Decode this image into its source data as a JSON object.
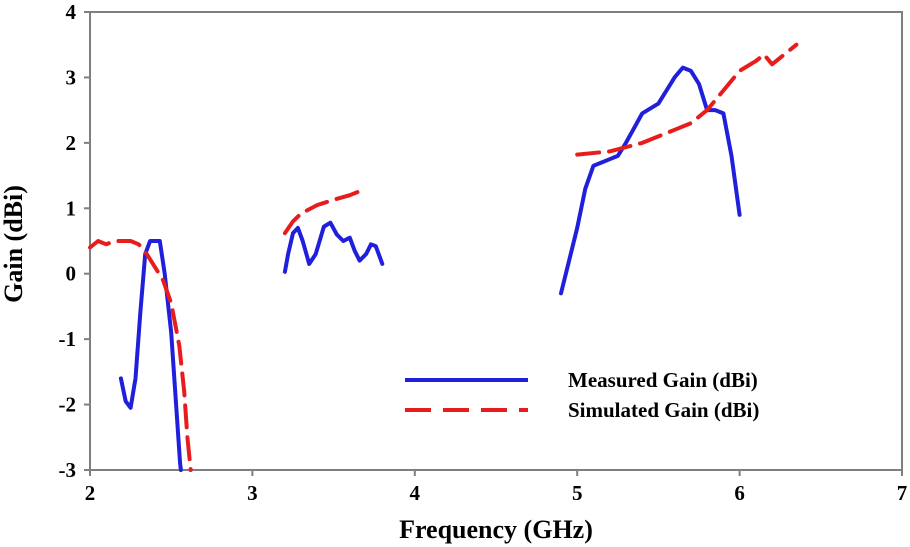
{
  "chart_data": {
    "type": "line",
    "title": "",
    "xlabel": "Frequency (GHz)",
    "ylabel": "Gain (dBi)",
    "xlim": [
      2,
      7
    ],
    "ylim": [
      -3,
      4
    ],
    "x_ticks": [
      "2",
      "3",
      "4",
      "5",
      "6",
      "7"
    ],
    "y_ticks": [
      "4",
      "3",
      "2",
      "1",
      "0",
      "-1",
      "-2",
      "-3"
    ],
    "legend_position": "bottom-right",
    "series": [
      {
        "name": "Measured Gain (dBi)",
        "color": "#1f1fdc",
        "style": "solid",
        "segments": [
          [
            [
              2.19,
              -1.6
            ],
            [
              2.22,
              -1.95
            ],
            [
              2.25,
              -2.05
            ],
            [
              2.28,
              -1.6
            ],
            [
              2.31,
              -0.6
            ],
            [
              2.34,
              0.3
            ],
            [
              2.37,
              0.5
            ],
            [
              2.4,
              0.5
            ],
            [
              2.43,
              0.5
            ],
            [
              2.46,
              0.0
            ],
            [
              2.5,
              -0.9
            ],
            [
              2.53,
              -2.0
            ],
            [
              2.555,
              -2.9
            ],
            [
              2.56,
              -3.0
            ]
          ],
          [
            [
              3.2,
              0.03
            ],
            [
              3.22,
              0.3
            ],
            [
              3.25,
              0.62
            ],
            [
              3.28,
              0.7
            ],
            [
              3.31,
              0.5
            ],
            [
              3.35,
              0.15
            ],
            [
              3.39,
              0.3
            ],
            [
              3.44,
              0.72
            ],
            [
              3.48,
              0.78
            ],
            [
              3.52,
              0.6
            ],
            [
              3.56,
              0.5
            ],
            [
              3.6,
              0.55
            ],
            [
              3.63,
              0.35
            ],
            [
              3.66,
              0.2
            ],
            [
              3.7,
              0.3
            ],
            [
              3.73,
              0.45
            ],
            [
              3.76,
              0.42
            ],
            [
              3.8,
              0.15
            ]
          ],
          [
            [
              4.9,
              -0.3
            ],
            [
              4.95,
              0.2
            ],
            [
              5.0,
              0.7
            ],
            [
              5.05,
              1.3
            ],
            [
              5.1,
              1.65
            ],
            [
              5.15,
              1.7
            ],
            [
              5.2,
              1.75
            ],
            [
              5.25,
              1.8
            ],
            [
              5.3,
              2.0
            ],
            [
              5.4,
              2.45
            ],
            [
              5.5,
              2.6
            ],
            [
              5.55,
              2.8
            ],
            [
              5.6,
              3.0
            ],
            [
              5.65,
              3.15
            ],
            [
              5.7,
              3.1
            ],
            [
              5.75,
              2.9
            ],
            [
              5.8,
              2.5
            ],
            [
              5.85,
              2.5
            ],
            [
              5.9,
              2.45
            ],
            [
              5.95,
              1.8
            ],
            [
              6.0,
              0.9
            ]
          ]
        ]
      },
      {
        "name": "Simulated Gain (dBi)",
        "color": "#e81c1c",
        "style": "dashed",
        "segments": [
          [
            [
              2.0,
              0.4
            ],
            [
              2.05,
              0.5
            ],
            [
              2.1,
              0.45
            ],
            [
              2.15,
              0.5
            ],
            [
              2.2,
              0.5
            ],
            [
              2.25,
              0.5
            ],
            [
              2.3,
              0.45
            ],
            [
              2.35,
              0.3
            ],
            [
              2.4,
              0.1
            ],
            [
              2.45,
              -0.1
            ],
            [
              2.5,
              -0.45
            ],
            [
              2.55,
              -1.1
            ],
            [
              2.58,
              -1.8
            ],
            [
              2.6,
              -2.5
            ],
            [
              2.62,
              -3.0
            ]
          ],
          [
            [
              3.2,
              0.62
            ],
            [
              3.25,
              0.8
            ],
            [
              3.3,
              0.92
            ],
            [
              3.4,
              1.05
            ],
            [
              3.5,
              1.13
            ],
            [
              3.6,
              1.2
            ],
            [
              3.67,
              1.27
            ]
          ],
          [
            [
              5.0,
              1.82
            ],
            [
              5.2,
              1.87
            ],
            [
              5.4,
              2.0
            ],
            [
              5.6,
              2.2
            ],
            [
              5.7,
              2.3
            ],
            [
              5.8,
              2.5
            ],
            [
              5.9,
              2.8
            ],
            [
              6.0,
              3.1
            ],
            [
              6.1,
              3.25
            ],
            [
              6.15,
              3.35
            ],
            [
              6.2,
              3.2
            ],
            [
              6.3,
              3.4
            ],
            [
              6.35,
              3.5
            ]
          ]
        ]
      }
    ]
  }
}
